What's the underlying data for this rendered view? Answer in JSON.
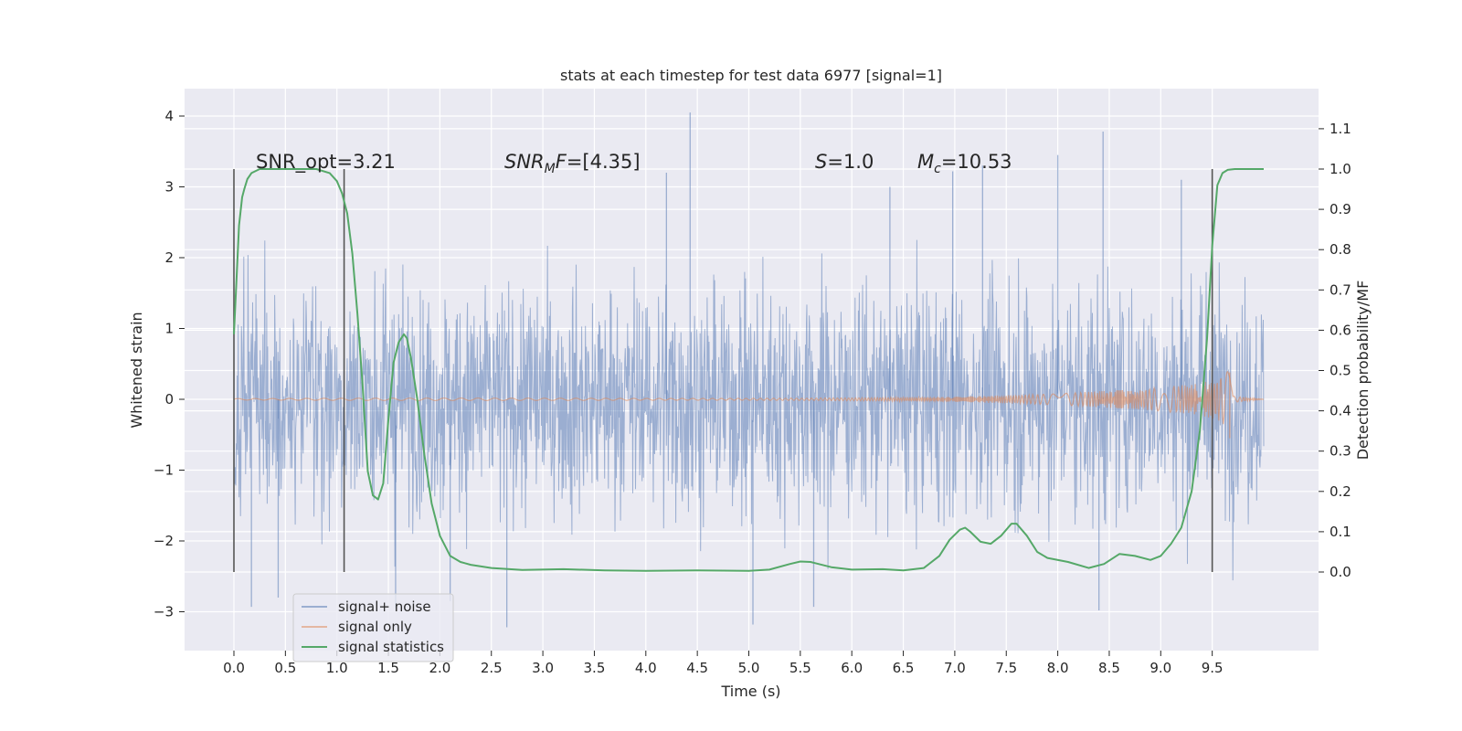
{
  "chart_data": {
    "type": "line",
    "title": "stats at each timestep for test data 6977 [signal=1]",
    "xlabel": "Time (s)",
    "ylabel": "Whitened strain",
    "y2label": "Detection probability/MF",
    "xlim": [
      -0.5,
      10.5
    ],
    "ylim": [
      -3.55,
      4.35
    ],
    "y2lim": [
      -0.22,
      1.17
    ],
    "x_ticks": [
      "0.0",
      "0.5",
      "1.0",
      "1.5",
      "2.0",
      "2.5",
      "3.0",
      "3.5",
      "4.0",
      "4.5",
      "5.0",
      "5.5",
      "6.0",
      "6.5",
      "7.0",
      "7.5",
      "8.0",
      "8.5",
      "9.0",
      "9.5"
    ],
    "y_ticks": [
      "-3",
      "-2",
      "-1",
      "0",
      "1",
      "2",
      "3",
      "4"
    ],
    "y2_ticks": [
      "0.0",
      "0.1",
      "0.2",
      "0.3",
      "0.4",
      "0.5",
      "0.6",
      "0.7",
      "0.8",
      "0.9",
      "1.0",
      "1.1"
    ],
    "grid": true,
    "legend_position": "lower-left",
    "annotations": {
      "snr_opt": "SNR_opt=3.21",
      "snr_mf_base": "SNR",
      "snr_mf_sub": "M",
      "snr_mf_f": "F",
      "snr_mf_val": "=[4.35]",
      "s_sym": "S",
      "s_val": "=1.0",
      "mc_base": "M",
      "mc_sub": "c",
      "mc_val": "=10.53"
    },
    "detection_markers_x": [
      0.0,
      1.07,
      9.5
    ],
    "series": [
      {
        "name": "signal+ noise",
        "color": "#4c72b0",
        "description_values": "noise fluctuations roughly within [-2.5, 3.2] with occasional spikes",
        "spikes": [
          [
            4.43,
            4.05
          ],
          [
            8.44,
            3.78
          ],
          [
            6.98,
            3.22
          ],
          [
            7.27,
            3.3
          ],
          [
            8.0,
            3.45
          ],
          [
            9.2,
            3.1
          ],
          [
            4.2,
            3.2
          ],
          [
            6.37,
            3.0
          ],
          [
            5.04,
            -3.18
          ],
          [
            2.65,
            -3.22
          ],
          [
            1.57,
            -2.95
          ],
          [
            0.17,
            -2.93
          ],
          [
            8.4,
            -2.98
          ],
          [
            5.63,
            -2.93
          ],
          [
            0.43,
            -2.8
          ],
          [
            2.1,
            -2.85
          ]
        ]
      },
      {
        "name": "signal only",
        "color": "#dd8452",
        "envelope": [
          [
            0.0,
            0.01
          ],
          [
            5.5,
            0.02
          ],
          [
            7.0,
            0.03
          ],
          [
            8.0,
            0.06
          ],
          [
            8.8,
            0.12
          ],
          [
            9.3,
            0.2
          ],
          [
            9.55,
            0.3
          ],
          [
            9.67,
            0.45
          ],
          [
            9.7,
            0.05
          ],
          [
            10.0,
            0.0
          ]
        ]
      },
      {
        "name": "signal statistics",
        "color": "#55a868",
        "axis": "right",
        "x": [
          0.0,
          0.02,
          0.05,
          0.08,
          0.1,
          0.13,
          0.17,
          0.25,
          0.4,
          0.6,
          0.8,
          0.93,
          1.0,
          1.05,
          1.1,
          1.15,
          1.2,
          1.25,
          1.3,
          1.35,
          1.4,
          1.45,
          1.5,
          1.55,
          1.6,
          1.65,
          1.68,
          1.72,
          1.78,
          1.85,
          1.92,
          2.0,
          2.1,
          2.2,
          2.3,
          2.5,
          2.8,
          3.2,
          3.6,
          4.0,
          4.5,
          5.0,
          5.2,
          5.4,
          5.5,
          5.6,
          5.8,
          6.0,
          6.3,
          6.5,
          6.7,
          6.85,
          6.95,
          7.05,
          7.1,
          7.15,
          7.25,
          7.35,
          7.45,
          7.55,
          7.6,
          7.7,
          7.8,
          7.9,
          8.1,
          8.3,
          8.45,
          8.6,
          8.75,
          8.9,
          9.0,
          9.1,
          9.2,
          9.3,
          9.38,
          9.45,
          9.5,
          9.55,
          9.6,
          9.65,
          9.72,
          9.8,
          9.9,
          10.0
        ],
        "values": [
          0.59,
          0.7,
          0.86,
          0.93,
          0.95,
          0.975,
          0.99,
          1.0,
          1.0,
          1.0,
          1.0,
          0.99,
          0.97,
          0.94,
          0.89,
          0.79,
          0.64,
          0.46,
          0.25,
          0.19,
          0.18,
          0.22,
          0.38,
          0.52,
          0.57,
          0.59,
          0.58,
          0.53,
          0.43,
          0.29,
          0.17,
          0.09,
          0.04,
          0.025,
          0.018,
          0.01,
          0.005,
          0.007,
          0.004,
          0.003,
          0.004,
          0.003,
          0.006,
          0.02,
          0.026,
          0.025,
          0.012,
          0.006,
          0.007,
          0.004,
          0.01,
          0.04,
          0.08,
          0.105,
          0.11,
          0.1,
          0.075,
          0.07,
          0.09,
          0.12,
          0.12,
          0.09,
          0.05,
          0.035,
          0.025,
          0.01,
          0.02,
          0.045,
          0.04,
          0.03,
          0.04,
          0.07,
          0.11,
          0.2,
          0.35,
          0.58,
          0.81,
          0.96,
          0.99,
          0.998,
          1.0,
          1.0,
          1.0,
          1.0
        ]
      }
    ]
  }
}
